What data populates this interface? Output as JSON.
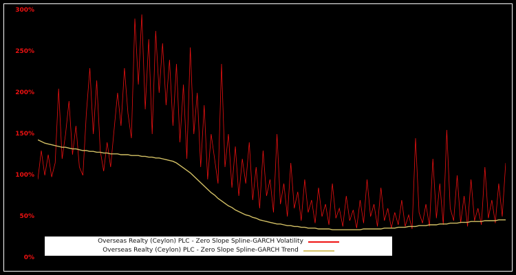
{
  "figure": {
    "background": "#000000",
    "border_color": "#ffffff"
  },
  "chart_data": {
    "type": "line",
    "title": "",
    "xlabel": "",
    "ylabel": "",
    "ylim": [
      0,
      300
    ],
    "yticks": [
      "0%",
      "50%",
      "100%",
      "150%",
      "200%",
      "250%",
      "300%"
    ],
    "ytick_color": "#ee1111",
    "xtick_labels": [],
    "grid": false,
    "legend_position": "bottom-center",
    "series": [
      {
        "name": "Overseas Realty (Ceylon) PLC - Zero Slope Spline-GARCH Volatility",
        "color": "#ee1111",
        "line_width": 0.8,
        "values": [
          95,
          130,
          100,
          125,
          98,
          115,
          205,
          120,
          150,
          190,
          125,
          160,
          110,
          100,
          175,
          230,
          150,
          215,
          130,
          105,
          140,
          110,
          155,
          200,
          160,
          230,
          175,
          145,
          290,
          210,
          295,
          180,
          265,
          150,
          275,
          200,
          260,
          185,
          240,
          160,
          235,
          140,
          210,
          120,
          255,
          150,
          200,
          110,
          185,
          95,
          150,
          120,
          90,
          235,
          110,
          150,
          85,
          135,
          75,
          120,
          90,
          140,
          70,
          110,
          60,
          130,
          75,
          95,
          55,
          150,
          65,
          90,
          50,
          115,
          60,
          80,
          45,
          95,
          55,
          70,
          42,
          85,
          50,
          65,
          40,
          90,
          48,
          60,
          38,
          75,
          45,
          58,
          36,
          70,
          42,
          95,
          50,
          65,
          38,
          85,
          45,
          60,
          36,
          55,
          40,
          70,
          38,
          52,
          35,
          145,
          55,
          42,
          65,
          38,
          120,
          48,
          90,
          40,
          155,
          60,
          45,
          100,
          42,
          75,
          38,
          95,
          45,
          60,
          40,
          110,
          48,
          70,
          42,
          90,
          50,
          115
        ]
      },
      {
        "name": "Overseas Realty (Ceylon) PLC - Zero Slope Spline-GARCH Trend",
        "color": "#d5c266",
        "line_width": 1.4,
        "values": [
          143,
          141,
          139,
          138,
          137,
          136,
          135,
          134,
          134,
          133,
          132,
          132,
          131,
          130,
          130,
          129,
          129,
          128,
          128,
          127,
          127,
          126,
          126,
          126,
          125,
          125,
          125,
          124,
          124,
          124,
          123,
          123,
          122,
          122,
          121,
          121,
          120,
          119,
          118,
          117,
          115,
          112,
          109,
          106,
          103,
          99,
          95,
          91,
          87,
          83,
          79,
          76,
          72,
          69,
          66,
          63,
          61,
          58,
          56,
          54,
          52,
          51,
          49,
          48,
          46,
          45,
          44,
          43,
          42,
          41,
          41,
          40,
          39,
          39,
          38,
          38,
          37,
          37,
          36,
          36,
          36,
          35,
          35,
          35,
          35,
          34,
          34,
          34,
          34,
          34,
          34,
          34,
          34,
          34,
          35,
          35,
          35,
          35,
          35,
          35,
          36,
          36,
          36,
          36,
          37,
          37,
          37,
          38,
          38,
          38,
          39,
          39,
          39,
          40,
          40,
          40,
          41,
          41,
          41,
          42,
          42,
          42,
          43,
          43,
          43,
          44,
          44,
          44,
          44,
          45,
          45,
          45,
          45,
          46,
          46,
          46
        ]
      }
    ]
  }
}
